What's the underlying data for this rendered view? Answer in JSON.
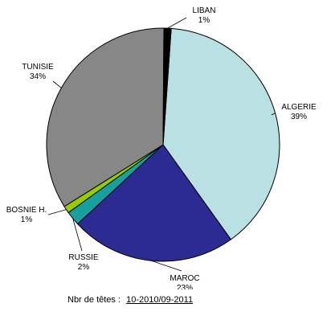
{
  "chart_data": {
    "type": "pie",
    "slices": [
      {
        "name": "ALGERIE",
        "value": 39,
        "display": "39%",
        "color": "#b9e0e3"
      },
      {
        "name": "MAROC",
        "value": 23,
        "display": "23%",
        "color": "#2c2a93"
      },
      {
        "name": "RUSSIE",
        "value": 2,
        "display": "2%",
        "color": "#17a0a0"
      },
      {
        "name": "BOSNIE H.",
        "value": 1,
        "display": "1%",
        "color": "#99cc00"
      },
      {
        "name": "TUNISIE",
        "value": 34,
        "display": "34%",
        "color": "#878787"
      },
      {
        "name": "LIBAN",
        "value": 1,
        "display": "1%",
        "color": "#000000"
      }
    ]
  },
  "footer": {
    "label": "Nbr de têtes :",
    "period": "10-2010/09-2011"
  }
}
